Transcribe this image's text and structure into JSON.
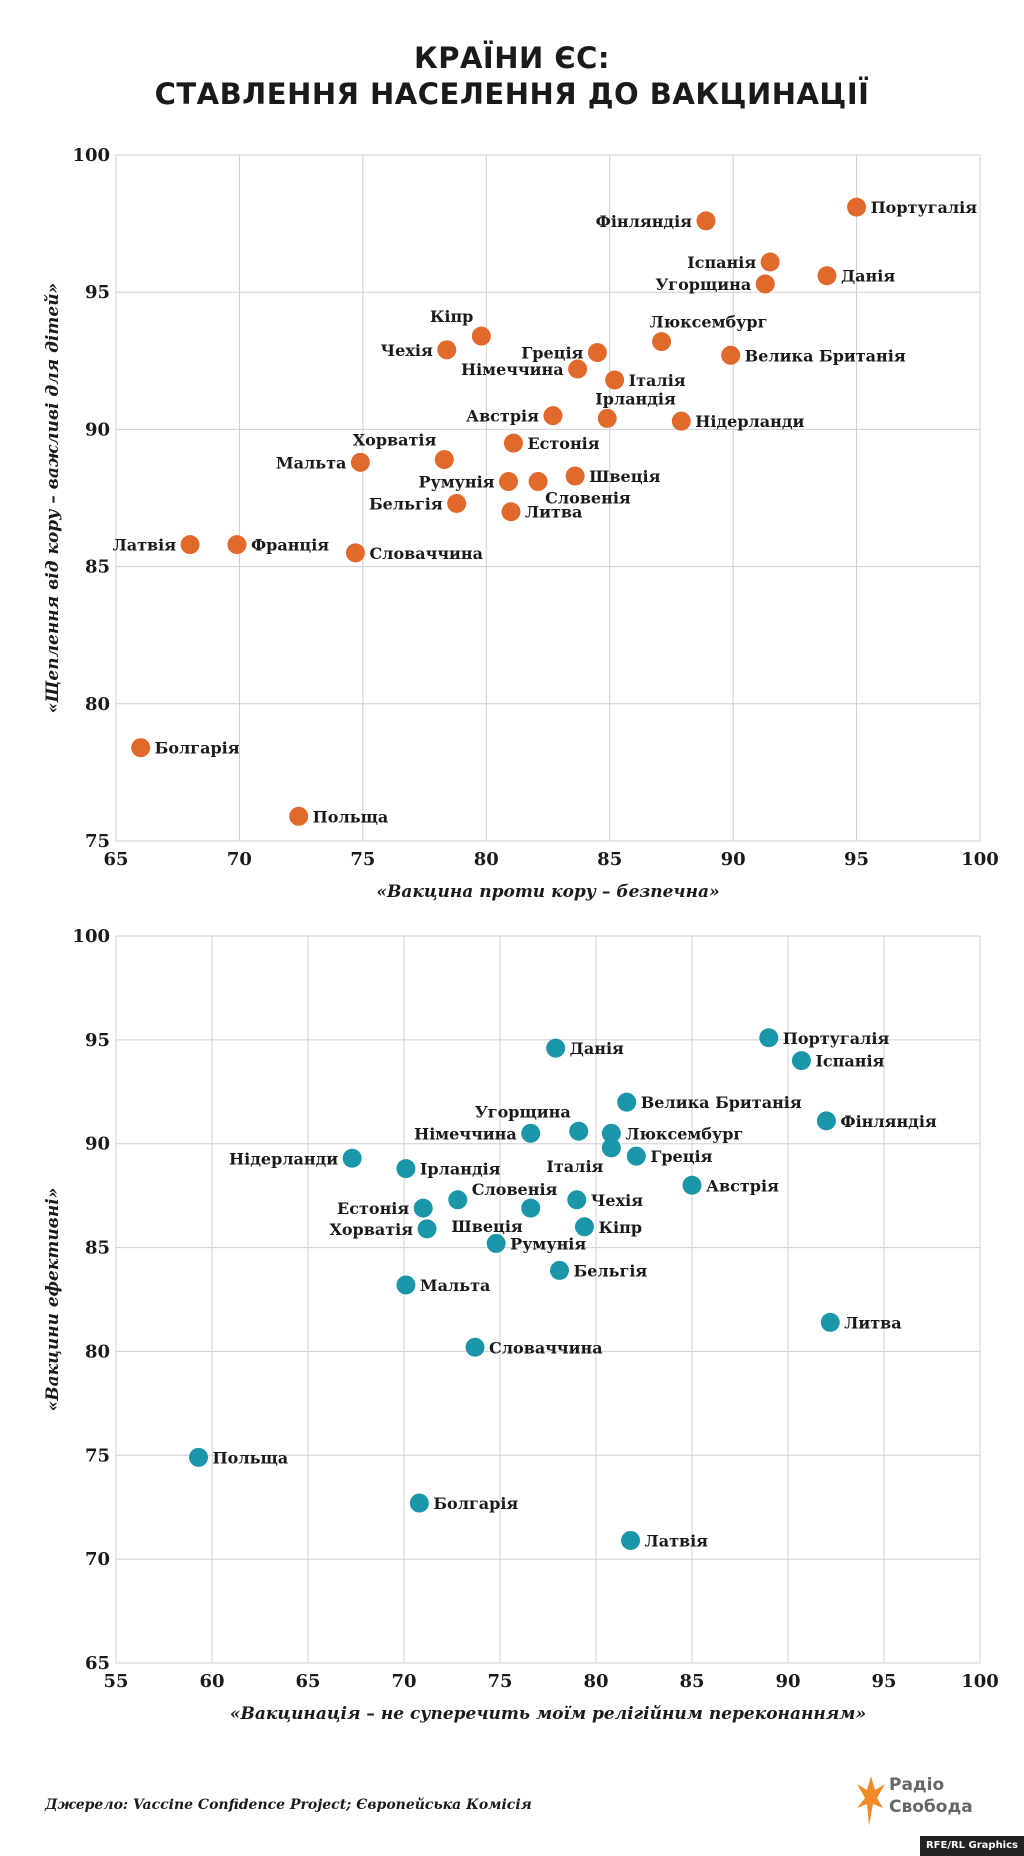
{
  "title": {
    "line1": "КРАЇНИ ЄС:",
    "line2": "СТАВЛЕННЯ НАСЕЛЕННЯ ДО ВАКЦИНАЦІЇ"
  },
  "colors": {
    "chart1": "#e0692b",
    "chart2": "#1b95a8",
    "grid": "#cfcfcf"
  },
  "chart_data": [
    {
      "type": "scatter",
      "title": "",
      "xlabel": "«Вакцина проти кору – безпечна»",
      "ylabel": "«Щеплення від кору – важливі для дітей»",
      "xlim": [
        65,
        100
      ],
      "ylim": [
        75,
        100
      ],
      "xticks": [
        65,
        70,
        75,
        80,
        85,
        90,
        95,
        100
      ],
      "yticks": [
        75,
        80,
        85,
        90,
        95,
        100
      ],
      "points": [
        {
          "label": "Португалія",
          "x": 95.0,
          "y": 98.1,
          "label_side": "right"
        },
        {
          "label": "Фінляндія",
          "x": 88.9,
          "y": 97.6,
          "label_side": "left"
        },
        {
          "label": "Іспанія",
          "x": 91.5,
          "y": 96.1,
          "label_side": "left"
        },
        {
          "label": "Данія",
          "x": 93.8,
          "y": 95.6,
          "label_side": "right"
        },
        {
          "label": "Угорщина",
          "x": 91.3,
          "y": 95.3,
          "label_side": "left"
        },
        {
          "label": "Кіпр",
          "x": 79.8,
          "y": 93.4,
          "label_side": "left-up"
        },
        {
          "label": "Люксембург",
          "x": 87.1,
          "y": 93.2,
          "label_side": "up"
        },
        {
          "label": "Чехія",
          "x": 78.4,
          "y": 92.9,
          "label_side": "left"
        },
        {
          "label": "Греція",
          "x": 84.5,
          "y": 92.8,
          "label_side": "left"
        },
        {
          "label": "Велика Британія",
          "x": 89.9,
          "y": 92.7,
          "label_side": "right"
        },
        {
          "label": "Німеччина",
          "x": 83.7,
          "y": 92.2,
          "label_side": "left"
        },
        {
          "label": "Італія",
          "x": 85.2,
          "y": 91.8,
          "label_side": "right"
        },
        {
          "label": "Ірландія",
          "x": 84.9,
          "y": 90.4,
          "label_side": "up"
        },
        {
          "label": "Австрія",
          "x": 82.7,
          "y": 90.5,
          "label_side": "left"
        },
        {
          "label": "Нідерланди",
          "x": 87.9,
          "y": 90.3,
          "label_side": "right"
        },
        {
          "label": "Естонія",
          "x": 81.1,
          "y": 89.5,
          "label_side": "right"
        },
        {
          "label": "Хорватія",
          "x": 78.3,
          "y": 88.9,
          "label_side": "left-up"
        },
        {
          "label": "Мальта",
          "x": 74.9,
          "y": 88.8,
          "label_side": "left"
        },
        {
          "label": "Швеція",
          "x": 83.6,
          "y": 88.3,
          "label_side": "right"
        },
        {
          "label": "Румунія",
          "x": 80.9,
          "y": 88.1,
          "label_side": "left"
        },
        {
          "label": "Словенія",
          "x": 82.1,
          "y": 88.1,
          "label_side": "right-down"
        },
        {
          "label": "Бельгія",
          "x": 78.8,
          "y": 87.3,
          "label_side": "left"
        },
        {
          "label": "Литва",
          "x": 81.0,
          "y": 87.0,
          "label_side": "right"
        },
        {
          "label": "Латвія",
          "x": 68.0,
          "y": 85.8,
          "label_side": "left"
        },
        {
          "label": "Франція",
          "x": 69.9,
          "y": 85.8,
          "label_side": "right"
        },
        {
          "label": "Словаччина",
          "x": 74.7,
          "y": 85.5,
          "label_side": "right"
        },
        {
          "label": "Болгарія",
          "x": 66.0,
          "y": 78.4,
          "label_side": "right"
        },
        {
          "label": "Польща",
          "x": 72.4,
          "y": 75.9,
          "label_side": "right"
        }
      ]
    },
    {
      "type": "scatter",
      "title": "",
      "xlabel": "«Вакцинація – не суперечить моїм релігійним переконанням»",
      "ylabel": "«Вакцини ефективні»",
      "xlim": [
        55,
        100
      ],
      "ylim": [
        65,
        100
      ],
      "xticks": [
        55,
        60,
        65,
        70,
        75,
        80,
        85,
        90,
        95,
        100
      ],
      "yticks": [
        65,
        70,
        75,
        80,
        85,
        90,
        95,
        100
      ],
      "points": [
        {
          "label": "Португалія",
          "x": 89.0,
          "y": 95.1,
          "label_side": "right"
        },
        {
          "label": "Данія",
          "x": 77.9,
          "y": 94.6,
          "label_side": "right"
        },
        {
          "label": "Іспанія",
          "x": 90.7,
          "y": 94.0,
          "label_side": "right"
        },
        {
          "label": "Велика Британія",
          "x": 81.6,
          "y": 92.0,
          "label_side": "right"
        },
        {
          "label": "Фінляндія",
          "x": 92.0,
          "y": 91.1,
          "label_side": "right"
        },
        {
          "label": "Угорщина",
          "x": 79.1,
          "y": 90.6,
          "label_side": "left-up"
        },
        {
          "label": "Німеччина",
          "x": 76.6,
          "y": 90.5,
          "label_side": "left"
        },
        {
          "label": "Люксембург",
          "x": 80.8,
          "y": 90.5,
          "label_side": "right"
        },
        {
          "label": "Італія",
          "x": 80.8,
          "y": 89.8,
          "label_side": "left-down"
        },
        {
          "label": "Нідерланди",
          "x": 67.3,
          "y": 89.3,
          "label_side": "left"
        },
        {
          "label": "Греція",
          "x": 82.1,
          "y": 89.4,
          "label_side": "right"
        },
        {
          "label": "Ірландія",
          "x": 70.1,
          "y": 88.8,
          "label_side": "right"
        },
        {
          "label": "Австрія",
          "x": 85.0,
          "y": 88.0,
          "label_side": "right"
        },
        {
          "label": "Словенія",
          "x": 72.8,
          "y": 87.3,
          "label_side": "right-up"
        },
        {
          "label": "Чехія",
          "x": 79.0,
          "y": 87.3,
          "label_side": "right"
        },
        {
          "label": "Естонія",
          "x": 71.0,
          "y": 86.9,
          "label_side": "left"
        },
        {
          "label": "Швеція",
          "x": 76.6,
          "y": 86.9,
          "label_side": "left-down"
        },
        {
          "label": "Кіпр",
          "x": 79.4,
          "y": 86.0,
          "label_side": "right"
        },
        {
          "label": "Хорватія",
          "x": 71.2,
          "y": 85.9,
          "label_side": "left"
        },
        {
          "label": "Румунія",
          "x": 74.8,
          "y": 85.2,
          "label_side": "right"
        },
        {
          "label": "Бельгія",
          "x": 78.1,
          "y": 83.9,
          "label_side": "right"
        },
        {
          "label": "Мальта",
          "x": 70.1,
          "y": 83.2,
          "label_side": "right"
        },
        {
          "label": "Литва",
          "x": 92.2,
          "y": 81.4,
          "label_side": "right"
        },
        {
          "label": "Словаччина",
          "x": 73.7,
          "y": 80.2,
          "label_side": "right"
        },
        {
          "label": "Польща",
          "x": 59.3,
          "y": 74.9,
          "label_side": "right"
        },
        {
          "label": "Болгарія",
          "x": 70.8,
          "y": 72.7,
          "label_side": "right"
        },
        {
          "label": "Латвія",
          "x": 81.8,
          "y": 70.9,
          "label_side": "right"
        }
      ]
    }
  ],
  "footer": {
    "source": "Джерело: Vaccine Confidence Project; Європейська Комісія",
    "logo_line1": "Радіо",
    "logo_line2": "Свобода",
    "credit": "RFE/RL Graphics"
  }
}
